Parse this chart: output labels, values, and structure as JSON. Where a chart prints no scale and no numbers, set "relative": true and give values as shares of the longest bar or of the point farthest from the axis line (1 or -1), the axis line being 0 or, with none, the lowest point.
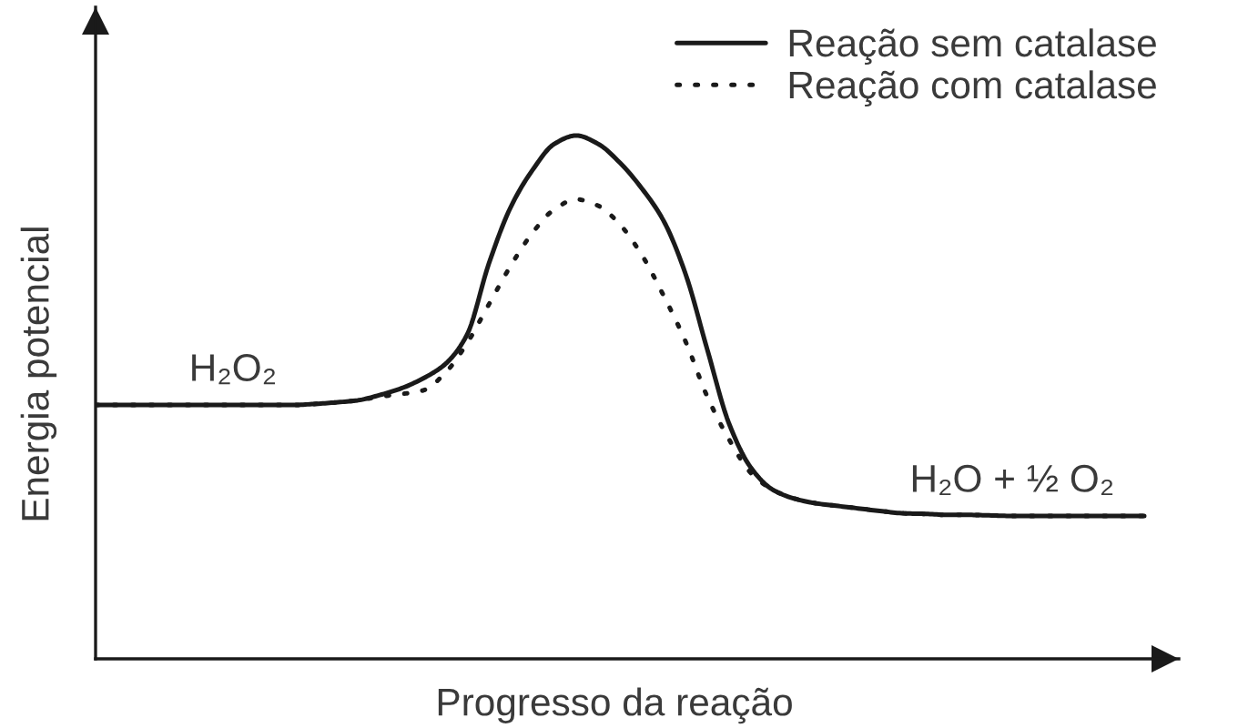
{
  "chart_data": {
    "type": "line",
    "relative": true,
    "xlabel": "Progresso da reação",
    "ylabel": "Energia potencial",
    "categories": [
      null,
      null,
      null,
      null,
      null,
      null,
      null,
      null,
      null,
      null,
      null,
      null,
      null,
      null,
      null,
      null,
      null,
      null,
      null,
      null,
      null,
      null,
      null,
      null,
      null,
      null,
      null,
      null,
      null,
      null,
      null,
      null,
      null,
      null,
      null,
      null,
      null,
      null,
      null,
      null,
      null,
      null,
      null,
      null,
      null,
      null,
      null,
      null,
      null
    ],
    "series": [
      {
        "name": "Reação sem catalase",
        "color": "#1a1a1a",
        "line_style": "solid",
        "values": [
          0.485,
          0.485,
          0.485,
          0.485,
          0.485,
          0.485,
          0.485,
          0.485,
          0.485,
          0.485,
          0.487,
          0.49,
          0.494,
          0.504,
          0.517,
          0.536,
          0.563,
          0.619,
          0.755,
          0.863,
          0.934,
          0.984,
          1.0,
          0.984,
          0.948,
          0.899,
          0.837,
          0.736,
          0.591,
          0.449,
          0.365,
          0.323,
          0.306,
          0.297,
          0.292,
          0.287,
          0.282,
          0.278,
          0.277,
          0.275,
          0.275,
          0.274,
          0.273,
          0.273,
          0.273,
          0.273,
          0.273,
          0.273,
          0.273
        ]
      },
      {
        "name": "Reação com catalase",
        "color": "#1a1a1a",
        "line_style": "dotted",
        "values": [
          0.485,
          0.485,
          0.485,
          0.485,
          0.485,
          0.485,
          0.485,
          0.485,
          0.485,
          0.485,
          0.487,
          0.49,
          0.494,
          0.501,
          0.506,
          0.513,
          0.546,
          0.603,
          0.677,
          0.751,
          0.814,
          0.859,
          0.878,
          0.866,
          0.83,
          0.772,
          0.694,
          0.607,
          0.501,
          0.419,
          0.355,
          0.323,
          0.306,
          0.297,
          0.292,
          0.287,
          0.282,
          0.278,
          0.277,
          0.275,
          0.275,
          0.274,
          0.273,
          0.273,
          0.273,
          0.273,
          0.273,
          0.273,
          0.273
        ]
      }
    ],
    "annotations": [
      "H₂O₂",
      "H₂O + ½ O₂"
    ],
    "legend": "top right"
  }
}
